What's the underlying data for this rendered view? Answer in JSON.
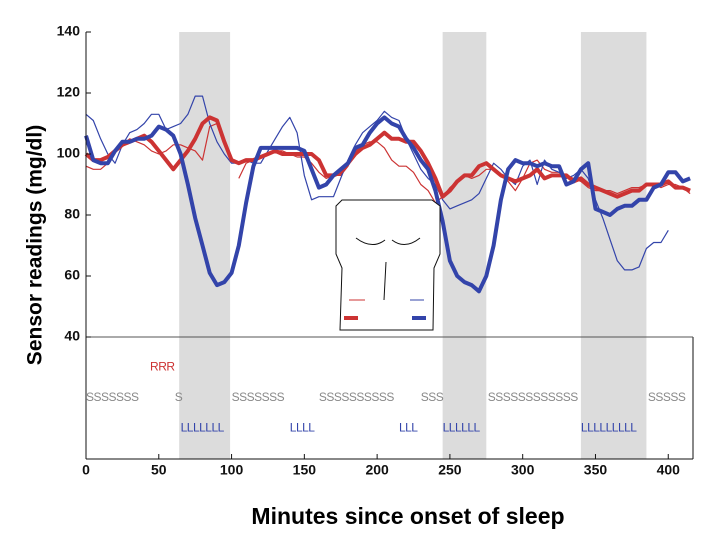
{
  "chart_data": {
    "type": "line",
    "x_label": "Minutes since onset of sleep",
    "y_label": "Sensor readings (mg/dl)",
    "xlim": [
      0,
      417
    ],
    "ylim": [
      0,
      140
    ],
    "xticks": [
      0,
      50,
      100,
      150,
      200,
      250,
      300,
      350,
      400
    ],
    "yticks": [
      40,
      60,
      80,
      100,
      120,
      140
    ],
    "baseline": 40,
    "shaded": [
      [
        64,
        99
      ],
      [
        245,
        275
      ],
      [
        340,
        385
      ]
    ],
    "shade_color": "#dcdcdc",
    "x": [
      0,
      5,
      10,
      15,
      20,
      25,
      30,
      35,
      40,
      45,
      50,
      55,
      60,
      65,
      70,
      75,
      80,
      85,
      90,
      95,
      100,
      105,
      110,
      115,
      120,
      125,
      130,
      135,
      140,
      145,
      150,
      155,
      160,
      165,
      170,
      175,
      180,
      185,
      190,
      195,
      200,
      205,
      210,
      215,
      220,
      225,
      230,
      235,
      240,
      245,
      250,
      255,
      260,
      265,
      270,
      275,
      280,
      285,
      290,
      295,
      300,
      305,
      310,
      315,
      320,
      325,
      330,
      335,
      340,
      345,
      350,
      355,
      360,
      365,
      370,
      375,
      380,
      385,
      390,
      395,
      400,
      405,
      410,
      415
    ],
    "series": [
      {
        "color": "#cc3333",
        "width": 1.2,
        "values": [
          96,
          95,
          95,
          97,
          101,
          103,
          105,
          104,
          103,
          101,
          100,
          101,
          103,
          103,
          102,
          101,
          98,
          109,
          110,
          104,
          null,
          92,
          97,
          98,
          99,
          100,
          101,
          101,
          100,
          99,
          99,
          97,
          94,
          92,
          93,
          93,
          96,
          101,
          103,
          104,
          104,
          102,
          98,
          96,
          96,
          94,
          90,
          88,
          84,
          86,
          89,
          91,
          93,
          92,
          93,
          95,
          95,
          93,
          91,
          88,
          92,
          97,
          98,
          95,
          94,
          94,
          93,
          92,
          91,
          89,
          88,
          88,
          88,
          87,
          88,
          89,
          89,
          90,
          90,
          89,
          90,
          90,
          89,
          87
        ]
      },
      {
        "color": "#3344aa",
        "width": 1.2,
        "values": [
          113,
          111,
          105,
          100,
          97,
          103,
          107,
          108,
          110,
          113,
          113,
          108,
          109,
          110,
          113,
          119,
          119,
          110,
          104,
          100,
          97,
          97,
          98,
          97,
          97,
          101,
          105,
          109,
          112,
          107,
          93,
          85,
          86,
          86,
          86,
          92,
          98,
          103,
          107,
          109,
          111,
          114,
          112,
          111,
          105,
          100,
          95,
          92,
          90,
          85,
          82,
          83,
          84,
          85,
          87,
          92,
          97,
          95,
          92,
          90,
          96,
          98,
          90,
          98,
          95,
          94,
          92,
          93,
          95,
          92,
          85,
          79,
          72,
          65,
          62,
          62,
          63,
          69,
          71,
          71,
          75,
          null,
          null,
          null
        ]
      },
      {
        "color": "#cc3333",
        "width": 4,
        "values": [
          100,
          98,
          98,
          99,
          101,
          103,
          104,
          105,
          106,
          104,
          101,
          98,
          95,
          98,
          101,
          105,
          110,
          112,
          111,
          104,
          98,
          97,
          98,
          98,
          99,
          100,
          101,
          100,
          100,
          100,
          100,
          100,
          98,
          93,
          93,
          94,
          97,
          100,
          102,
          103,
          105,
          107,
          105,
          105,
          104,
          104,
          101,
          97,
          92,
          86,
          88,
          91,
          93,
          93,
          96,
          97,
          95,
          93,
          92,
          91,
          92,
          93,
          95,
          92,
          93,
          93,
          93,
          91,
          92,
          90,
          89,
          88,
          87,
          86,
          87,
          88,
          88,
          90,
          90,
          90,
          91,
          89,
          89,
          88
        ]
      },
      {
        "color": "#3344aa",
        "width": 4,
        "values": [
          106,
          98,
          97,
          97,
          101,
          104,
          104,
          105,
          105,
          106,
          109,
          108,
          106,
          100,
          90,
          79,
          70,
          61,
          57,
          58,
          61,
          70,
          84,
          96,
          102,
          102,
          102,
          102,
          102,
          102,
          101,
          95,
          89,
          90,
          93,
          95,
          97,
          102,
          103,
          107,
          110,
          112,
          110,
          109,
          105,
          102,
          98,
          95,
          88,
          78,
          65,
          60,
          58,
          57,
          55,
          60,
          70,
          85,
          95,
          98,
          97,
          97,
          96,
          97,
          96,
          96,
          90,
          91,
          95,
          97,
          82,
          81,
          80,
          82,
          83,
          83,
          85,
          85,
          89,
          90,
          94,
          94,
          91,
          92
        ]
      }
    ],
    "annotations": [
      {
        "text": "RRR",
        "x": 44,
        "y": 30,
        "color": "#cc3333"
      },
      {
        "text": "SSSSSSS",
        "x": 0,
        "y": 20,
        "color": "#888888"
      },
      {
        "text": "S",
        "x": 61,
        "y": 20,
        "color": "#888888"
      },
      {
        "text": "SSSSSSS",
        "x": 100,
        "y": 20,
        "color": "#888888"
      },
      {
        "text": "SSSSSSSSSS",
        "x": 160,
        "y": 20,
        "color": "#888888"
      },
      {
        "text": "SSS",
        "x": 230,
        "y": 20,
        "color": "#888888"
      },
      {
        "text": "SSSSSSSSSSSS",
        "x": 276,
        "y": 20,
        "color": "#888888"
      },
      {
        "text": "SSSSS",
        "x": 386,
        "y": 20,
        "color": "#888888"
      },
      {
        "text": "LLLLLLL",
        "x": 65,
        "y": 10,
        "color": "#3344aa"
      },
      {
        "text": "LLLL",
        "x": 140,
        "y": 10,
        "color": "#3344aa"
      },
      {
        "text": "LLL",
        "x": 215,
        "y": 10,
        "color": "#3344aa"
      },
      {
        "text": "LLLLLL",
        "x": 245,
        "y": 10,
        "color": "#3344aa"
      },
      {
        "text": "LLLLLLLLL",
        "x": 340,
        "y": 10,
        "color": "#3344aa"
      }
    ]
  }
}
